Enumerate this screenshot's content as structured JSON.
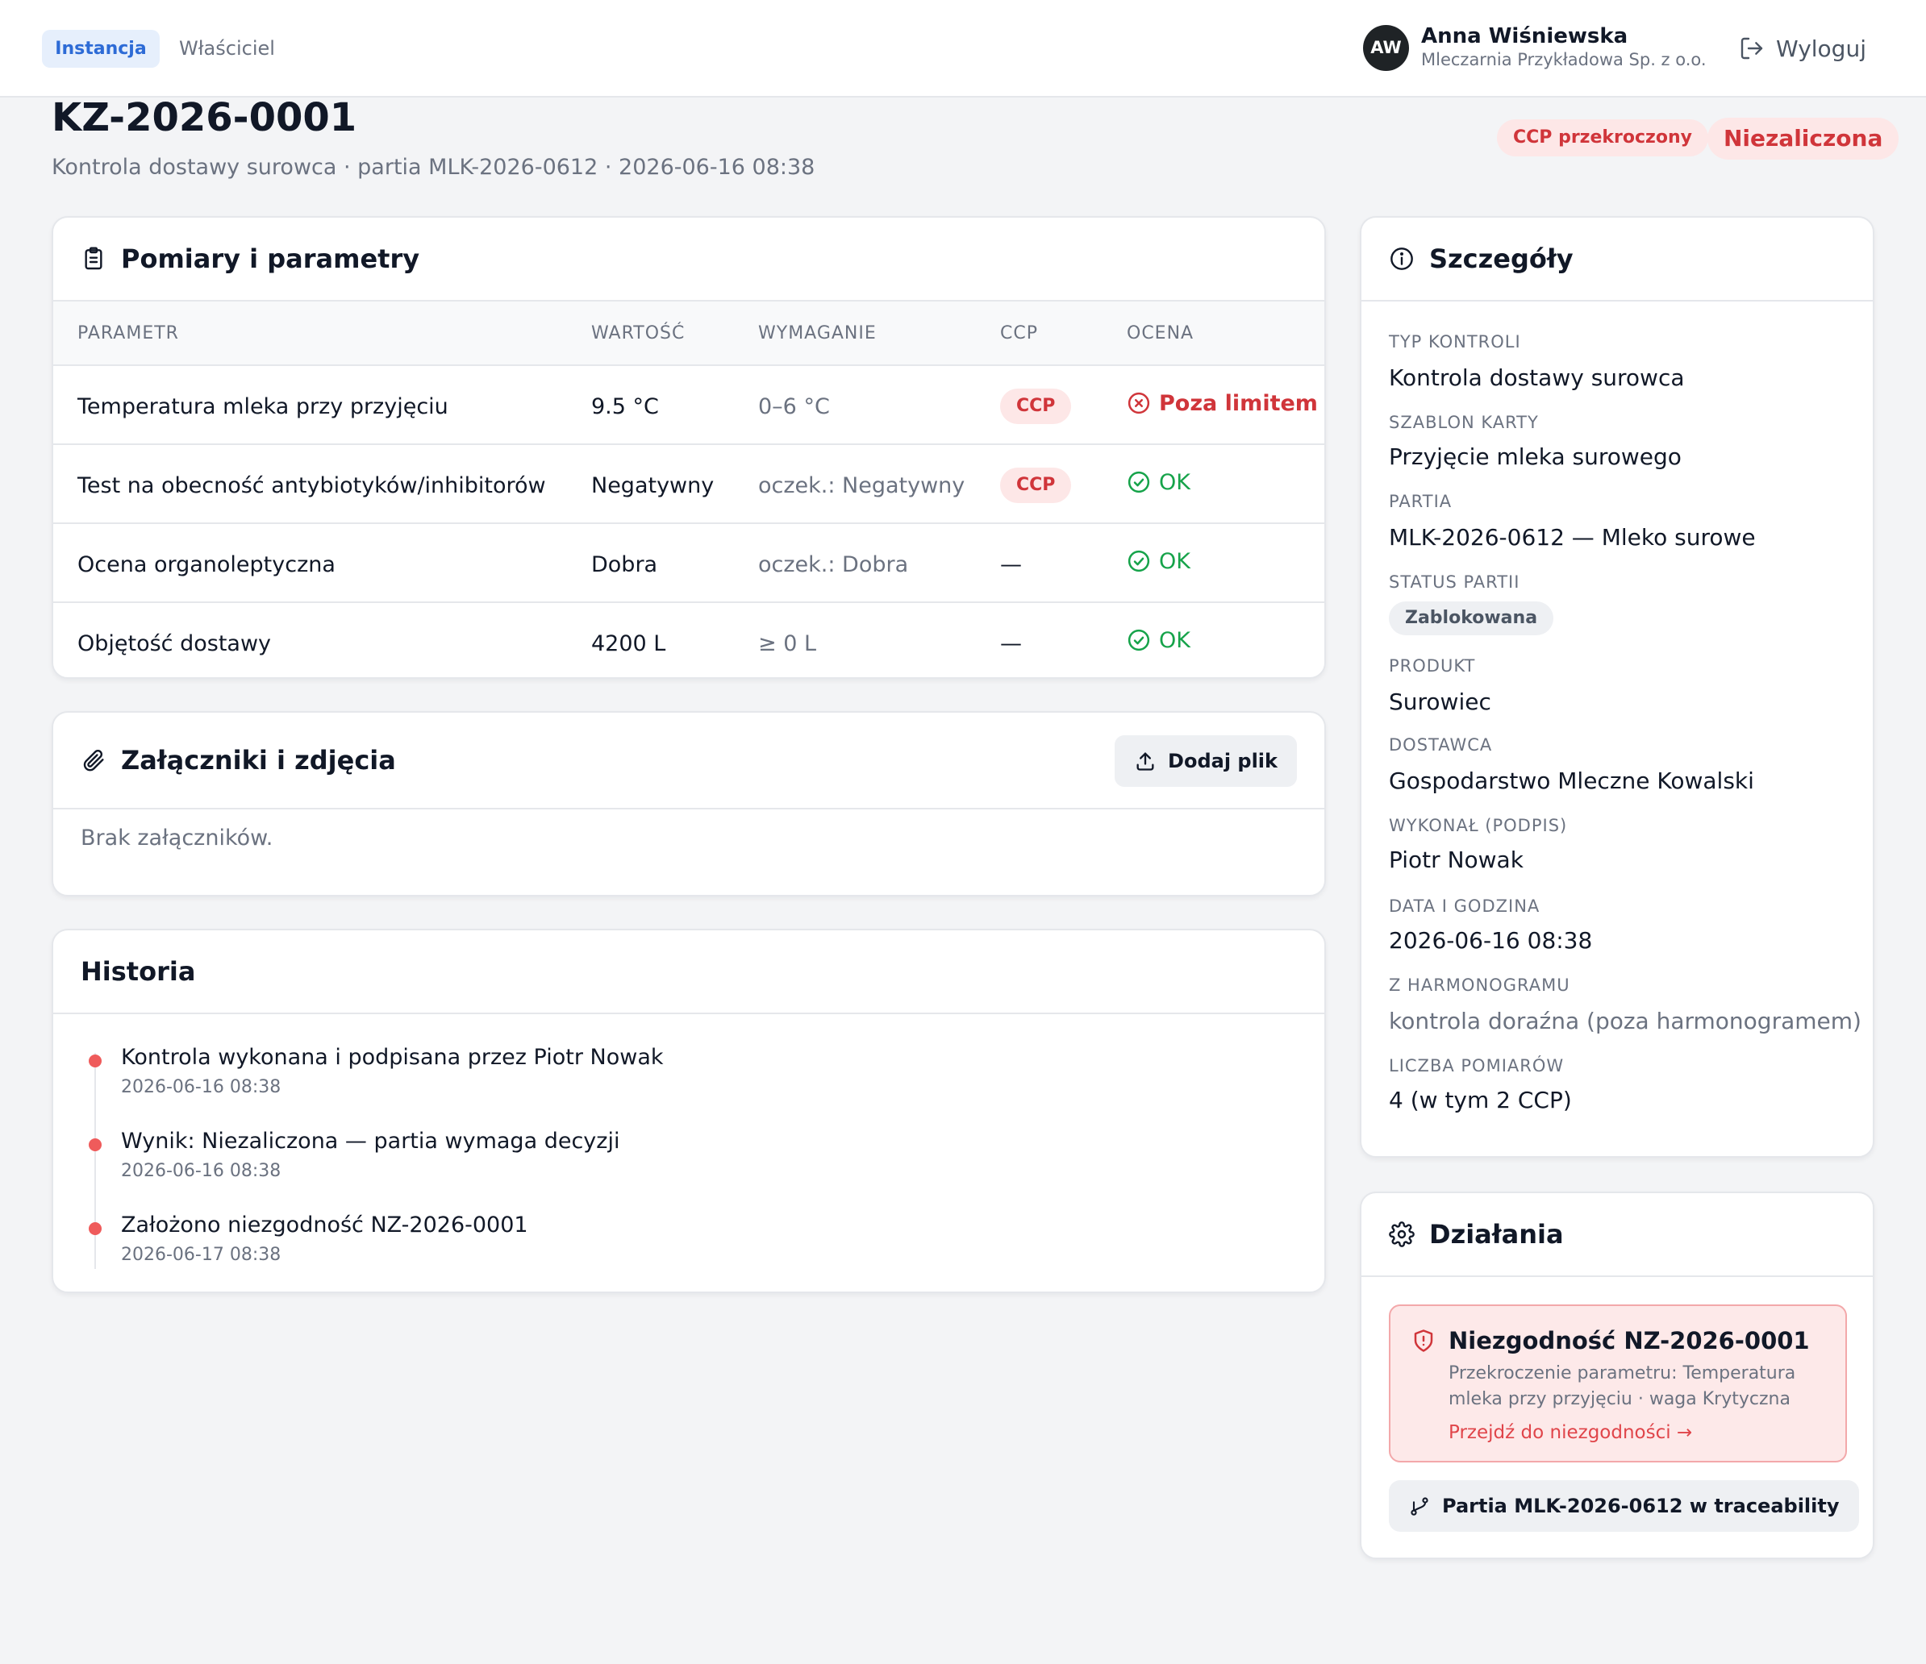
{
  "topbar": {
    "tabs": [
      {
        "label": "Instancja",
        "active": true
      },
      {
        "label": "Właściciel",
        "active": false
      }
    ],
    "user": {
      "initials": "AW",
      "name": "Anna Wiśniewska",
      "org": "Mleczarnia Przykładowa Sp. z o.o."
    },
    "logout_label": "Wyloguj"
  },
  "page": {
    "title": "KZ-2026-0001",
    "subtitle": "Kontrola dostawy surowca · partia MLK-2026-0612 · 2026-06-16 08:38",
    "badges": {
      "ccp": "CCP przekroczony",
      "result": "Niezaliczona"
    }
  },
  "measurements": {
    "title": "Pomiary i parametry",
    "columns": [
      "PARAMETR",
      "WARTOŚĆ",
      "WYMAGANIE",
      "CCP",
      "OCENA"
    ],
    "rows": [
      {
        "param": "Temperatura mleka przy przyjęciu",
        "value": "9.5 °C",
        "requirement": "0–6 °C",
        "ccp": "CCP",
        "eval": "Poza limitem",
        "status": "fail"
      },
      {
        "param": "Test na obecność antybiotyków/inhibitorów",
        "value": "Negatywny",
        "requirement": "oczek.: Negatywny",
        "ccp": "CCP",
        "eval": "OK",
        "status": "ok"
      },
      {
        "param": "Ocena organoleptyczna",
        "value": "Dobra",
        "requirement": "oczek.: Dobra",
        "ccp": "—",
        "eval": "OK",
        "status": "ok"
      },
      {
        "param": "Objętość dostawy",
        "value": "4200 L",
        "requirement": "≥ 0 L",
        "ccp": "—",
        "eval": "OK",
        "status": "ok"
      }
    ]
  },
  "attachments": {
    "title": "Załączniki i zdjęcia",
    "add_label": "Dodaj plik",
    "empty": "Brak załączników."
  },
  "history": {
    "title": "Historia",
    "items": [
      {
        "text": "Kontrola wykonana i podpisana przez Piotr Nowak",
        "time": "2026-06-16 08:38"
      },
      {
        "text": "Wynik: Niezaliczona — partia wymaga decyzji",
        "time": "2026-06-16 08:38"
      },
      {
        "text": "Założono niezgodność NZ-2026-0001",
        "time": "2026-06-17 08:38"
      }
    ]
  },
  "details": {
    "title": "Szczegóły",
    "fields": [
      {
        "label": "TYP KONTROLI",
        "value": "Kontrola dostawy surowca"
      },
      {
        "label": "SZABLON KARTY",
        "value": "Przyjęcie mleka surowego"
      },
      {
        "label": "PARTIA",
        "value": "MLK-2026-0612 — Mleko surowe"
      },
      {
        "label": "STATUS PARTII",
        "value": "Zablokowana"
      },
      {
        "label": "PRODUKT",
        "value": "Surowiec"
      },
      {
        "label": "DOSTAWCA",
        "value": "Gospodarstwo Mleczne Kowalski"
      },
      {
        "label": "WYKONAŁ (PODPIS)",
        "value": "Piotr Nowak"
      },
      {
        "label": "DATA I GODZINA",
        "value": "2026-06-16 08:38"
      },
      {
        "label": "Z HARMONOGRAMU",
        "value": "kontrola doraźna (poza harmonogramem)"
      },
      {
        "label": "LICZBA POMIARÓW",
        "value": "4 (w tym 2 CCP)"
      }
    ]
  },
  "actions": {
    "title": "Działania",
    "nonconformity": {
      "title": "Niezgodność NZ-2026-0001",
      "description": "Przekroczenie parametru: Temperatura mleka przy przyjęciu · waga Krytyczna",
      "link": "Przejdź do niezgodności →"
    },
    "trace_button": "Partia MLK-2026-0612 w traceability"
  },
  "colors": {
    "accent_blue": "#2d6bd6",
    "danger": "#d0353a",
    "success": "#16a34a",
    "timeline_dot": "#ef5b5b"
  }
}
